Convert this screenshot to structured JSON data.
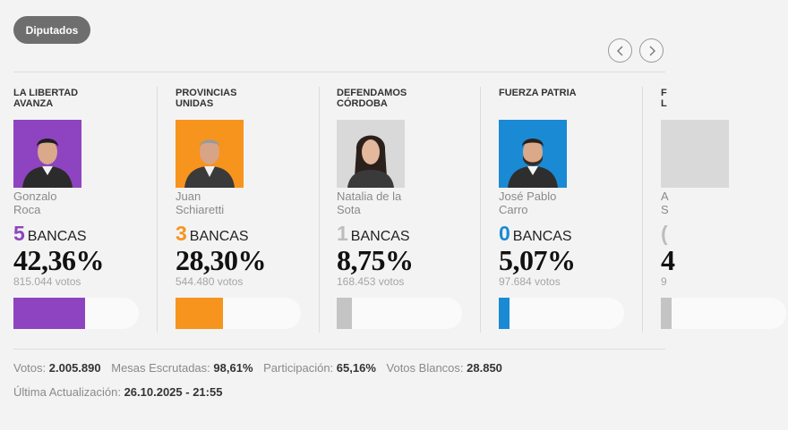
{
  "header": {
    "tab_label": "Diputados"
  },
  "parties": [
    {
      "name": "LA LIBERTAD\nAVANZA",
      "candidate": "Gonzalo\nRoca",
      "seats": "5",
      "seats_label": "BANCAS",
      "percentage": "42,36%",
      "votes": "815.044 votos",
      "share": 0.4236,
      "color": "#8e44c0",
      "avatar_bg": "#8e44c0"
    },
    {
      "name": "PROVINCIAS\nUNIDAS",
      "candidate": "Juan\nSchiaretti",
      "seats": "3",
      "seats_label": "BANCAS",
      "percentage": "28,30%",
      "votes": "544.480 votos",
      "share": 0.283,
      "color": "#f7941d",
      "avatar_bg": "#f7941d"
    },
    {
      "name": "DEFENDAMOS\nCÓRDOBA",
      "candidate": "Natalia de la\nSota",
      "seats": "1",
      "seats_label": "BANCAS",
      "percentage": "8,75%",
      "votes": "168.453 votos",
      "share": 0.0875,
      "color": "#c4c4c4",
      "avatar_bg": "#d9d9d9"
    },
    {
      "name": "FUERZA PATRIA",
      "candidate": "José Pablo\nCarro",
      "seats": "0",
      "seats_label": "BANCAS",
      "percentage": "5,07%",
      "votes": "97.684 votos",
      "share": 0.0507,
      "color": "#1a8ad4",
      "avatar_bg": "#1a8ad4"
    },
    {
      "name": "F\nL",
      "candidate": "A\nS",
      "seats": "(",
      "seats_label": "",
      "percentage": "4",
      "votes": "9",
      "share": 0.04,
      "color": "#c4c4c4",
      "avatar_bg": "#d9d9d9"
    }
  ],
  "stats": {
    "votos_label": "Votos:",
    "votos_value": "2.005.890",
    "mesas_label": "Mesas Escrutadas:",
    "mesas_value": "98,61%",
    "participacion_label": "Participación:",
    "participacion_value": "65,16%",
    "blancos_label": "Votos Blancos:",
    "blancos_value": "28.850"
  },
  "updated": {
    "label": "Última Actualización:",
    "value": "26.10.2025 - 21:55"
  },
  "icons": {
    "prev": "chevron-left-icon",
    "next": "chevron-right-icon"
  }
}
